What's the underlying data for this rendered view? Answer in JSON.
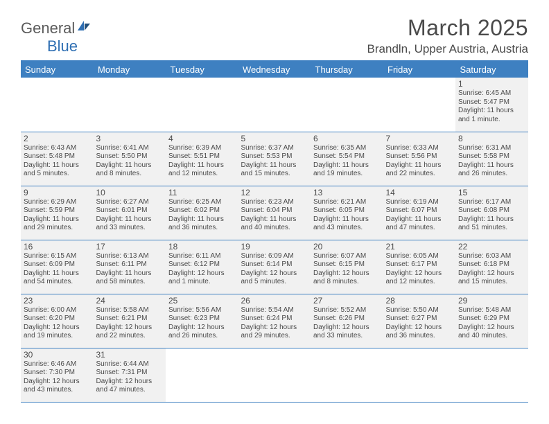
{
  "logo": {
    "general": "General",
    "blue": "Blue"
  },
  "title": "March 2025",
  "location": "Brandln, Upper Austria, Austria",
  "colors": {
    "header_bg": "#3e80c1",
    "cell_bg": "#f1f1f1",
    "text": "#4a4a4a",
    "white": "#ffffff"
  },
  "weekdays": [
    "Sunday",
    "Monday",
    "Tuesday",
    "Wednesday",
    "Thursday",
    "Friday",
    "Saturday"
  ],
  "grid": [
    [
      null,
      null,
      null,
      null,
      null,
      null,
      {
        "n": "1",
        "sr": "Sunrise: 6:45 AM",
        "ss": "Sunset: 5:47 PM",
        "d1": "Daylight: 11 hours",
        "d2": "and 1 minute."
      }
    ],
    [
      {
        "n": "2",
        "sr": "Sunrise: 6:43 AM",
        "ss": "Sunset: 5:48 PM",
        "d1": "Daylight: 11 hours",
        "d2": "and 5 minutes."
      },
      {
        "n": "3",
        "sr": "Sunrise: 6:41 AM",
        "ss": "Sunset: 5:50 PM",
        "d1": "Daylight: 11 hours",
        "d2": "and 8 minutes."
      },
      {
        "n": "4",
        "sr": "Sunrise: 6:39 AM",
        "ss": "Sunset: 5:51 PM",
        "d1": "Daylight: 11 hours",
        "d2": "and 12 minutes."
      },
      {
        "n": "5",
        "sr": "Sunrise: 6:37 AM",
        "ss": "Sunset: 5:53 PM",
        "d1": "Daylight: 11 hours",
        "d2": "and 15 minutes."
      },
      {
        "n": "6",
        "sr": "Sunrise: 6:35 AM",
        "ss": "Sunset: 5:54 PM",
        "d1": "Daylight: 11 hours",
        "d2": "and 19 minutes."
      },
      {
        "n": "7",
        "sr": "Sunrise: 6:33 AM",
        "ss": "Sunset: 5:56 PM",
        "d1": "Daylight: 11 hours",
        "d2": "and 22 minutes."
      },
      {
        "n": "8",
        "sr": "Sunrise: 6:31 AM",
        "ss": "Sunset: 5:58 PM",
        "d1": "Daylight: 11 hours",
        "d2": "and 26 minutes."
      }
    ],
    [
      {
        "n": "9",
        "sr": "Sunrise: 6:29 AM",
        "ss": "Sunset: 5:59 PM",
        "d1": "Daylight: 11 hours",
        "d2": "and 29 minutes."
      },
      {
        "n": "10",
        "sr": "Sunrise: 6:27 AM",
        "ss": "Sunset: 6:01 PM",
        "d1": "Daylight: 11 hours",
        "d2": "and 33 minutes."
      },
      {
        "n": "11",
        "sr": "Sunrise: 6:25 AM",
        "ss": "Sunset: 6:02 PM",
        "d1": "Daylight: 11 hours",
        "d2": "and 36 minutes."
      },
      {
        "n": "12",
        "sr": "Sunrise: 6:23 AM",
        "ss": "Sunset: 6:04 PM",
        "d1": "Daylight: 11 hours",
        "d2": "and 40 minutes."
      },
      {
        "n": "13",
        "sr": "Sunrise: 6:21 AM",
        "ss": "Sunset: 6:05 PM",
        "d1": "Daylight: 11 hours",
        "d2": "and 43 minutes."
      },
      {
        "n": "14",
        "sr": "Sunrise: 6:19 AM",
        "ss": "Sunset: 6:07 PM",
        "d1": "Daylight: 11 hours",
        "d2": "and 47 minutes."
      },
      {
        "n": "15",
        "sr": "Sunrise: 6:17 AM",
        "ss": "Sunset: 6:08 PM",
        "d1": "Daylight: 11 hours",
        "d2": "and 51 minutes."
      }
    ],
    [
      {
        "n": "16",
        "sr": "Sunrise: 6:15 AM",
        "ss": "Sunset: 6:09 PM",
        "d1": "Daylight: 11 hours",
        "d2": "and 54 minutes."
      },
      {
        "n": "17",
        "sr": "Sunrise: 6:13 AM",
        "ss": "Sunset: 6:11 PM",
        "d1": "Daylight: 11 hours",
        "d2": "and 58 minutes."
      },
      {
        "n": "18",
        "sr": "Sunrise: 6:11 AM",
        "ss": "Sunset: 6:12 PM",
        "d1": "Daylight: 12 hours",
        "d2": "and 1 minute."
      },
      {
        "n": "19",
        "sr": "Sunrise: 6:09 AM",
        "ss": "Sunset: 6:14 PM",
        "d1": "Daylight: 12 hours",
        "d2": "and 5 minutes."
      },
      {
        "n": "20",
        "sr": "Sunrise: 6:07 AM",
        "ss": "Sunset: 6:15 PM",
        "d1": "Daylight: 12 hours",
        "d2": "and 8 minutes."
      },
      {
        "n": "21",
        "sr": "Sunrise: 6:05 AM",
        "ss": "Sunset: 6:17 PM",
        "d1": "Daylight: 12 hours",
        "d2": "and 12 minutes."
      },
      {
        "n": "22",
        "sr": "Sunrise: 6:03 AM",
        "ss": "Sunset: 6:18 PM",
        "d1": "Daylight: 12 hours",
        "d2": "and 15 minutes."
      }
    ],
    [
      {
        "n": "23",
        "sr": "Sunrise: 6:00 AM",
        "ss": "Sunset: 6:20 PM",
        "d1": "Daylight: 12 hours",
        "d2": "and 19 minutes."
      },
      {
        "n": "24",
        "sr": "Sunrise: 5:58 AM",
        "ss": "Sunset: 6:21 PM",
        "d1": "Daylight: 12 hours",
        "d2": "and 22 minutes."
      },
      {
        "n": "25",
        "sr": "Sunrise: 5:56 AM",
        "ss": "Sunset: 6:23 PM",
        "d1": "Daylight: 12 hours",
        "d2": "and 26 minutes."
      },
      {
        "n": "26",
        "sr": "Sunrise: 5:54 AM",
        "ss": "Sunset: 6:24 PM",
        "d1": "Daylight: 12 hours",
        "d2": "and 29 minutes."
      },
      {
        "n": "27",
        "sr": "Sunrise: 5:52 AM",
        "ss": "Sunset: 6:26 PM",
        "d1": "Daylight: 12 hours",
        "d2": "and 33 minutes."
      },
      {
        "n": "28",
        "sr": "Sunrise: 5:50 AM",
        "ss": "Sunset: 6:27 PM",
        "d1": "Daylight: 12 hours",
        "d2": "and 36 minutes."
      },
      {
        "n": "29",
        "sr": "Sunrise: 5:48 AM",
        "ss": "Sunset: 6:29 PM",
        "d1": "Daylight: 12 hours",
        "d2": "and 40 minutes."
      }
    ],
    [
      {
        "n": "30",
        "sr": "Sunrise: 6:46 AM",
        "ss": "Sunset: 7:30 PM",
        "d1": "Daylight: 12 hours",
        "d2": "and 43 minutes."
      },
      {
        "n": "31",
        "sr": "Sunrise: 6:44 AM",
        "ss": "Sunset: 7:31 PM",
        "d1": "Daylight: 12 hours",
        "d2": "and 47 minutes."
      },
      null,
      null,
      null,
      null,
      null
    ]
  ]
}
